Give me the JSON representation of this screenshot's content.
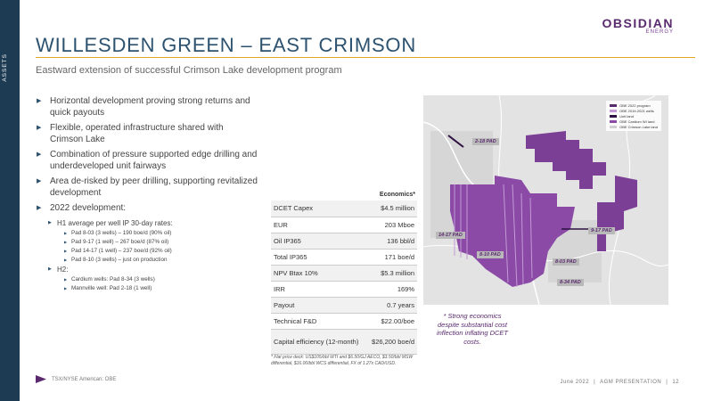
{
  "sidebar": {
    "label": "ASSETS"
  },
  "logo": {
    "main": "OBSIDIAN",
    "sub": "ENERGY"
  },
  "slide": {
    "title": "WILLESDEN GREEN – EAST CRIMSON",
    "subtitle": "Eastward extension of successful Crimson Lake development program"
  },
  "bullets": {
    "b1": "Horizontal development proving strong returns and quick payouts",
    "b2": "Flexible, operated infrastructure shared with Crimson Lake",
    "b3": "Combination of pressure supported edge drilling and underdeveloped unit fairways",
    "b4": "Area de-risked by peer drilling, supporting revitalized development",
    "b5": "2022 development:",
    "h1": "H1 average per well IP 30-day rates:",
    "h1_items": [
      "Pad 8-03 (3 wells) – 190 boe/d (90% oil)",
      "Pad 9-17 (1 well) – 267 boe/d (87% oil)",
      "Pad 14-17 (1 well) – 237 boe/d  (92% oil)",
      "Pad 8-10 (3 wells) – just on production"
    ],
    "h2": "H2:",
    "h2_items": [
      "Cardium wells: Pad 8-34 (3 wells)",
      "Mannville well:  Pad 2-18 (1 well)"
    ]
  },
  "economics": {
    "header": "Economics*",
    "rows": [
      {
        "label": "DCET Capex",
        "value": "$4.5 million"
      },
      {
        "label": "EUR",
        "value": "203 Mboe"
      },
      {
        "label": "Oil IP365",
        "value": "136 bbl/d"
      },
      {
        "label": "Total IP365",
        "value": "171 boe/d"
      },
      {
        "label": "NPV Btax 10%",
        "value": "$5.3 million"
      },
      {
        "label": "IRR",
        "value": "169%"
      },
      {
        "label": "Payout",
        "value": "0.7 years"
      },
      {
        "label": "Technical F&D",
        "value": "$22.00/boe"
      },
      {
        "label": "Capital efficiency (12-month)",
        "value": "$26,200 boe/d"
      }
    ],
    "footnote": "* Flat price deck: US$105/bbl WTI and $6.50/GJ AECO, $3.50/bbl MSW differential, $16.00/bbl WCS differential, FX of 1.27x CAD/USD."
  },
  "map": {
    "legend": [
      {
        "label": "OBE 2022 program",
        "color": "#5a2a6e"
      },
      {
        "label": "OBE 2019-2021 wells",
        "color": "#c39ad6"
      },
      {
        "label": "Unit land",
        "color": "#2d1040"
      },
      {
        "label": "OBE Cardium WI land",
        "color": "#8a4aa6"
      },
      {
        "label": "OBE Crimson Lake land",
        "color": "#cfcfcf"
      }
    ],
    "pads": [
      "2-18 PAD",
      "14-17 PAD",
      "8-10 PAD",
      "9-17 PAD",
      "8-03 PAD",
      "8-34 PAD"
    ]
  },
  "callout": "* Strong economics despite substantial cost inflection inflating DCET costs.",
  "footer": {
    "ticker": "TSX/NYSE American: OBE",
    "date": "June 2022",
    "presentation": "AGM PRESENTATION",
    "page": "12"
  }
}
